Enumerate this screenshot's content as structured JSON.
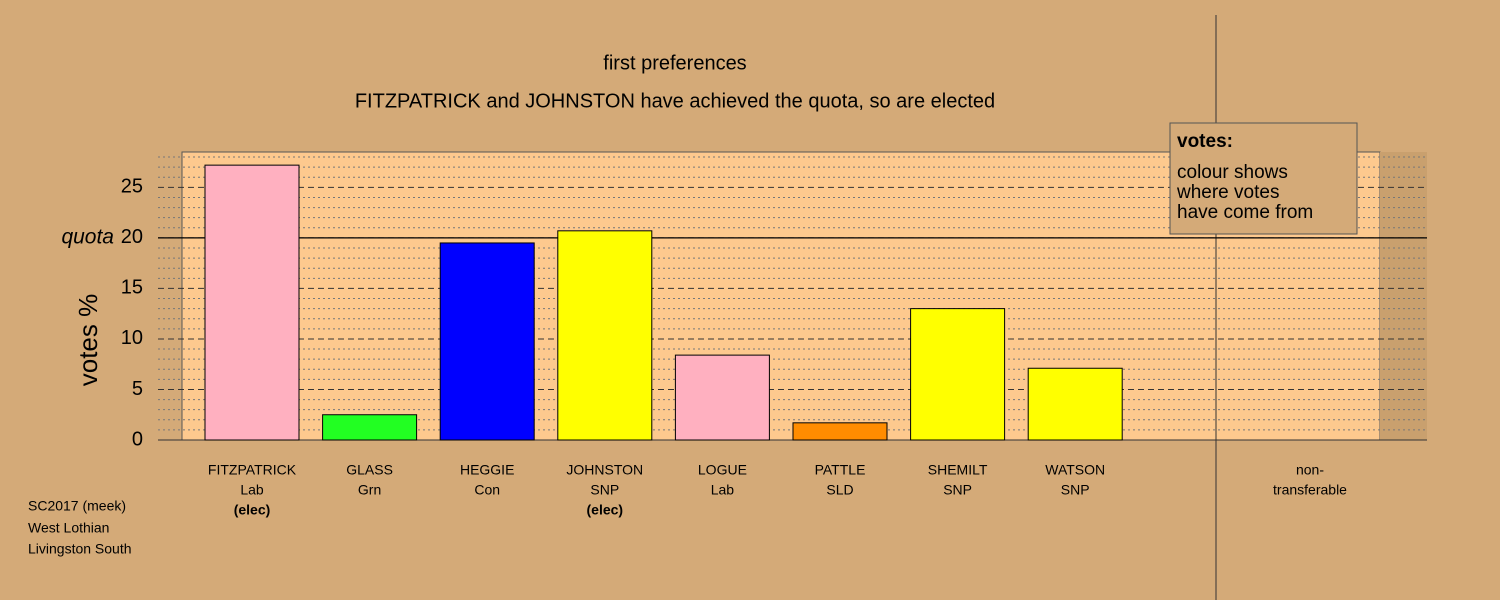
{
  "chart_data": {
    "type": "bar",
    "title": "first preferences",
    "subtitle": "FITZPATRICK and JOHNSTON have achieved the quota, so are elected",
    "y_label": "votes %",
    "categories": [
      "FITZPATRICK",
      "GLASS",
      "HEGGIE",
      "JOHNSTON",
      "LOGUE",
      "PATTLE",
      "SHEMILT",
      "WATSON",
      "non-"
    ],
    "parties": [
      "Lab",
      "Grn",
      "Con",
      "SNP",
      "Lab",
      "SLD",
      "SNP",
      "SNP",
      "transferable"
    ],
    "notes": [
      "(elec)",
      null,
      null,
      "(elec)",
      null,
      null,
      null,
      null,
      null
    ],
    "colors": [
      "#ffb0c0",
      "#22ff22",
      "#0000ff",
      "#ffff00",
      "#ffb0c0",
      "#ff8c00",
      "#ffff00",
      "#ffff00",
      "#d4aa78"
    ],
    "values": [
      27.2,
      2.5,
      19.5,
      20.7,
      8.4,
      1.7,
      13.0,
      7.1,
      0
    ],
    "ylim": [
      0,
      28.5
    ],
    "yticks": [
      0,
      5,
      10,
      15,
      20,
      25
    ],
    "minor_grid": [
      1,
      2,
      3,
      4,
      6,
      7,
      8,
      9,
      11,
      12,
      13,
      14,
      16,
      17,
      18,
      19,
      21,
      22,
      23,
      24,
      26,
      27,
      28
    ],
    "quota": {
      "value": 20,
      "label": "quota"
    },
    "legend": {
      "title": "votes:",
      "lines": [
        "colour shows",
        "where votes",
        "have come from"
      ]
    },
    "footer": [
      "SC2017 (meek)",
      "West Lothian",
      "Livingston South"
    ]
  }
}
